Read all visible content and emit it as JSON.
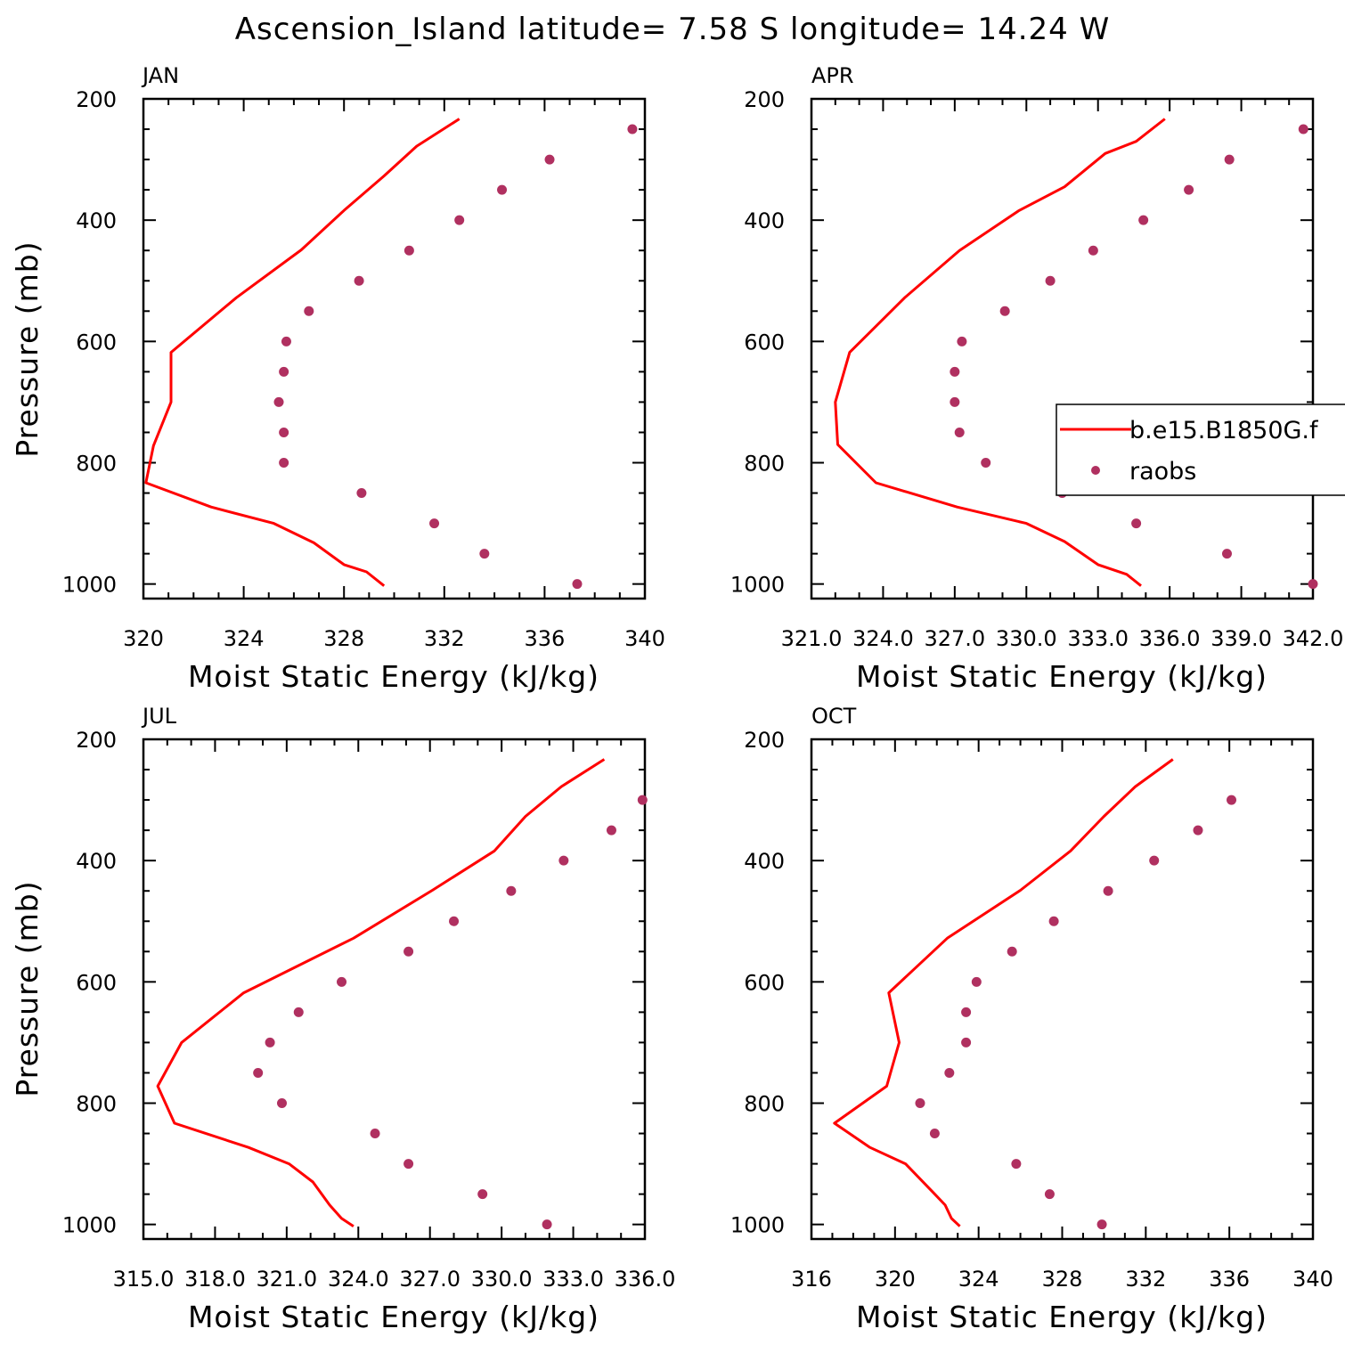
{
  "title": "Ascension_Island  latitude= 7.58 S longitude= 14.24 W",
  "colors": {
    "model": "#ff0000",
    "raobs": "#b03060",
    "axes": "#000000"
  },
  "legend": {
    "model_label": "b.e15.B1850G.f",
    "raobs_label": "raobs",
    "placement": "right, overlapping APR panel"
  },
  "chart_data": [
    {
      "type": "line",
      "panel": "JAN",
      "xlabel": "Moist Static Energy (kJ/kg)",
      "ylabel": "Pressure (mb)",
      "xlim": [
        320,
        340
      ],
      "ylim": [
        1000,
        200
      ],
      "xticks": [
        "320",
        "324",
        "328",
        "332",
        "336",
        "340"
      ],
      "yticks": [
        "200",
        "400",
        "600",
        "800",
        "1000"
      ],
      "series": [
        {
          "name": "b.e15.B1850G.f",
          "x": [
            332.6,
            330.9,
            329.6,
            328.0,
            326.3,
            323.7,
            321.1,
            321.1,
            320.4,
            320.1,
            322.7,
            325.2,
            326.8,
            328.0,
            328.9,
            329.6
          ],
          "y": [
            233,
            278,
            327,
            384,
            449,
            528,
            618,
            700,
            772,
            833,
            873,
            900,
            932,
            968,
            980,
            1003
          ]
        },
        {
          "name": "raobs",
          "x": [
            339.5,
            336.2,
            334.3,
            332.6,
            330.6,
            328.6,
            326.6,
            325.7,
            325.6,
            325.4,
            325.6,
            325.6,
            328.7,
            331.6,
            333.6,
            337.3
          ],
          "y": [
            250,
            300,
            350,
            400,
            450,
            500,
            550,
            600,
            650,
            700,
            750,
            800,
            850,
            900,
            950,
            1000
          ]
        }
      ]
    },
    {
      "type": "line",
      "panel": "APR",
      "xlabel": "Moist Static Energy (kJ/kg)",
      "ylabel": "",
      "xlim": [
        321,
        342
      ],
      "ylim": [
        1000,
        200
      ],
      "xticks": [
        "321.0",
        "324.0",
        "327.0",
        "330.0",
        "333.0",
        "336.0",
        "339.0",
        "342.0"
      ],
      "yticks": [
        "200",
        "400",
        "600",
        "800",
        "1000"
      ],
      "series": [
        {
          "name": "b.e15.B1850G.f",
          "x": [
            335.8,
            334.6,
            333.3,
            331.6,
            329.7,
            327.2,
            324.9,
            322.6,
            322.0,
            322.1,
            323.7,
            327.1,
            330.0,
            331.6,
            333.0,
            334.2,
            334.8
          ],
          "y": [
            233,
            270,
            290,
            345,
            384,
            450,
            528,
            618,
            700,
            770,
            833,
            873,
            900,
            930,
            968,
            984,
            1003
          ]
        },
        {
          "name": "raobs",
          "x": [
            341.6,
            338.5,
            336.8,
            334.9,
            332.8,
            331.0,
            329.1,
            327.3,
            327.0,
            327.0,
            327.2,
            328.3,
            331.5,
            334.6,
            338.4,
            342.0
          ],
          "y": [
            250,
            300,
            350,
            400,
            450,
            500,
            550,
            600,
            650,
            700,
            750,
            800,
            850,
            900,
            950,
            1000
          ]
        }
      ]
    },
    {
      "type": "line",
      "panel": "JUL",
      "xlabel": "Moist Static Energy (kJ/kg)",
      "ylabel": "Pressure (mb)",
      "xlim": [
        315,
        336
      ],
      "ylim": [
        1000,
        200
      ],
      "xticks": [
        "315.0",
        "318.0",
        "321.0",
        "324.0",
        "327.0",
        "330.0",
        "333.0",
        "336.0"
      ],
      "yticks": [
        "200",
        "400",
        "600",
        "800",
        "1000"
      ],
      "series": [
        {
          "name": "b.e15.B1850G.f",
          "x": [
            334.3,
            332.5,
            331.0,
            329.7,
            327.1,
            323.8,
            319.2,
            316.6,
            315.6,
            316.3,
            319.4,
            321.1,
            322.1,
            322.8,
            323.3,
            323.8
          ],
          "y": [
            233,
            278,
            327,
            384,
            449,
            528,
            618,
            700,
            772,
            833,
            873,
            900,
            930,
            968,
            990,
            1003
          ]
        },
        {
          "name": "raobs",
          "x": [
            335.9,
            334.6,
            332.6,
            330.4,
            328.0,
            326.1,
            323.3,
            321.5,
            320.3,
            319.8,
            320.8,
            324.7,
            326.1,
            329.2,
            331.9
          ],
          "y": [
            300,
            350,
            400,
            450,
            500,
            550,
            600,
            650,
            700,
            750,
            800,
            850,
            900,
            950,
            1000
          ]
        }
      ]
    },
    {
      "type": "line",
      "panel": "OCT",
      "xlabel": "Moist Static Energy (kJ/kg)",
      "ylabel": "",
      "xlim": [
        316,
        340
      ],
      "ylim": [
        1000,
        200
      ],
      "xticks": [
        "316",
        "320",
        "324",
        "328",
        "332",
        "336",
        "340"
      ],
      "yticks": [
        "200",
        "400",
        "600",
        "800",
        "1000"
      ],
      "series": [
        {
          "name": "b.e15.B1850G.f",
          "x": [
            333.3,
            331.5,
            330.0,
            328.4,
            326.0,
            322.5,
            319.7,
            320.2,
            319.6,
            317.1,
            318.8,
            320.5,
            321.9,
            322.4,
            322.7,
            323.1
          ],
          "y": [
            233,
            278,
            327,
            384,
            449,
            528,
            618,
            700,
            772,
            833,
            873,
            900,
            950,
            968,
            990,
            1003
          ]
        },
        {
          "name": "raobs",
          "x": [
            336.1,
            334.5,
            332.4,
            330.2,
            327.6,
            325.6,
            323.9,
            323.4,
            323.4,
            322.6,
            321.2,
            321.9,
            325.8,
            327.4,
            329.9
          ],
          "y": [
            300,
            350,
            400,
            450,
            500,
            550,
            600,
            650,
            700,
            750,
            800,
            850,
            900,
            950,
            1000
          ]
        }
      ]
    }
  ]
}
